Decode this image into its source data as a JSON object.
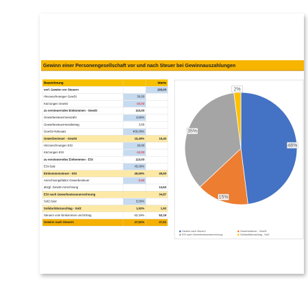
{
  "title": "Gewinn einer Personengesellschaft vor und nach Steuer bei Gewinnauszahlungen",
  "table": {
    "header": [
      "Bezeichnung",
      "Werte"
    ],
    "rows": [
      {
        "label": "vorl. Gewinn vor Steuern",
        "value": "100,00"
      },
      {
        "label": "Hinzurechnungen GewSt",
        "input": "30,00"
      },
      {
        "label": "Kürzungen GewSt",
        "input": "-20,00"
      },
      {
        "label": "zu versteuerndes Einkommen - GewSt",
        "input": "110,00"
      },
      {
        "label": "Gewerbesteuermesszahl",
        "input": "3,50%"
      },
      {
        "label": "Gewerbesteuermessbetrag",
        "input": "3,85"
      },
      {
        "label": "GewSt-Hebesatz",
        "input": "400,00%"
      },
      {
        "label": "Gewerbesteuer - GewSt",
        "input": "15,40%",
        "value": "15,40"
      },
      {
        "label": "Hinzurechnungen ESt",
        "input": "20,00"
      },
      {
        "label": "Kürzungen ESt",
        "input": "-10,00"
      },
      {
        "label": "zu versteuerndes Einkommen - ESt",
        "input": "110,00"
      },
      {
        "label": "ESt-Satz",
        "input": "45,00%"
      },
      {
        "label": "Einkommensteuer - ESt",
        "input": "49,50%",
        "value": "49,50"
      },
      {
        "label": "Anrechnungsfaktor Gewerbesteuer",
        "input": "-3,80"
      },
      {
        "label": "abzgl. GewSt-Anrechnung",
        "value": "14,63"
      },
      {
        "label": "ESt nach Gewerbesteueranrechnung",
        "value": "34,87"
      },
      {
        "label": "SolZ-Satz",
        "input": "5,50%"
      },
      {
        "label": "Solidaritätszuschlag - SolZ",
        "input": "1,92%",
        "value": "1,92"
      },
      {
        "label": "Steuern vom Einkommen und Ertrag",
        "input": "52,19%",
        "value": "52,19"
      },
      {
        "label": "Gewinn nach Steuern",
        "input": "47,81%",
        "value": "47,81"
      }
    ]
  },
  "chart_data": {
    "type": "pie",
    "categories": [
      "Gewinn nach Steuern",
      "Gewerbesteuer - GewSt",
      "ESt nach Gewerbesteueranrechnung",
      "Solidaritätszuschlag - SolZ"
    ],
    "values": [
      48,
      15,
      35,
      2
    ],
    "value_labels": [
      "48%",
      "15%",
      "35%",
      "2%"
    ],
    "colors": [
      "#4472c4",
      "#ed7d31",
      "#a5a5a5",
      "#ffc000"
    ]
  }
}
